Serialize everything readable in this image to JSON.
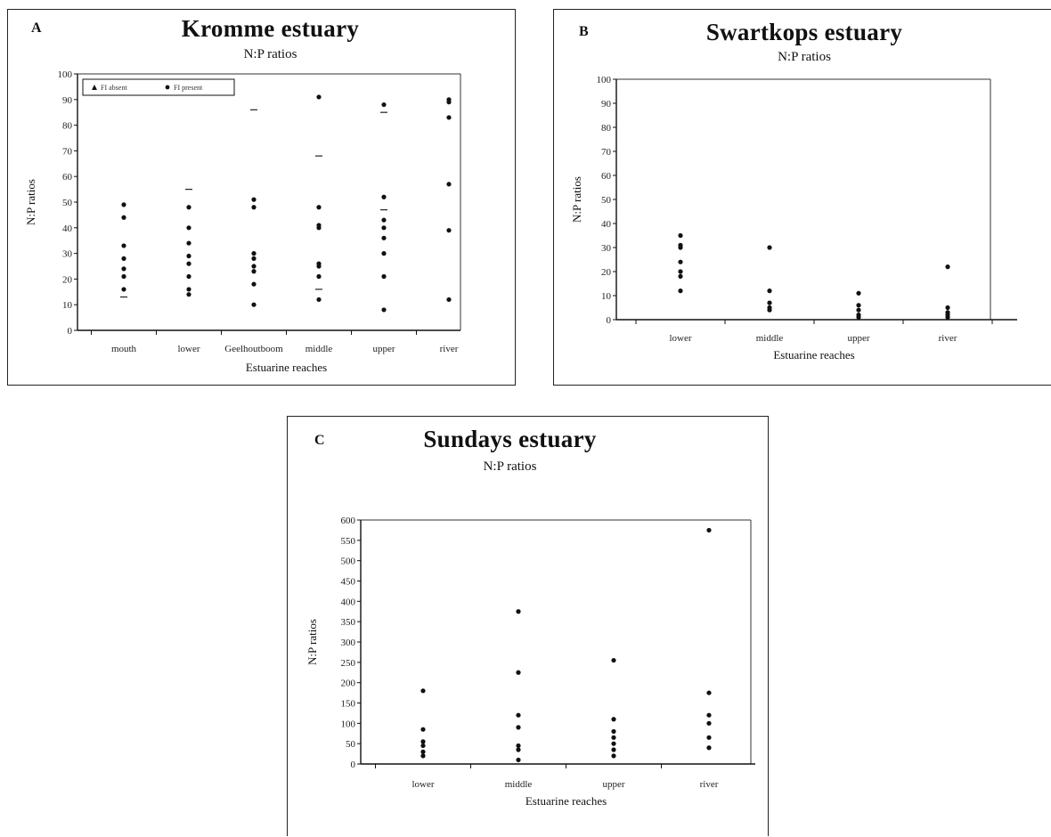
{
  "chart_data": [
    {
      "panel": "A",
      "type": "scatter",
      "title": "Kromme estuary",
      "subtitle": "N:P ratios",
      "xlabel": "Estuarine reaches",
      "ylabel": "N:P ratios",
      "categories": [
        "mouth",
        "lower",
        "Geelhoutboom",
        "middle",
        "upper",
        "river"
      ],
      "y_ticks": [
        "100",
        "90",
        "80",
        "70",
        "60",
        "50",
        "40",
        "30",
        "20",
        "10",
        "0"
      ],
      "ylim": [
        0,
        100
      ],
      "legend": {
        "placement": "top-left",
        "entries": [
          "FI absent",
          "FI present"
        ]
      },
      "series": [
        {
          "name": "FI present",
          "marker": "dot",
          "points": [
            {
              "x": "mouth",
              "y": 49
            },
            {
              "x": "mouth",
              "y": 44
            },
            {
              "x": "mouth",
              "y": 33
            },
            {
              "x": "mouth",
              "y": 28
            },
            {
              "x": "mouth",
              "y": 24
            },
            {
              "x": "mouth",
              "y": 21
            },
            {
              "x": "mouth",
              "y": 16
            },
            {
              "x": "lower",
              "y": 48
            },
            {
              "x": "lower",
              "y": 40
            },
            {
              "x": "lower",
              "y": 34
            },
            {
              "x": "lower",
              "y": 29
            },
            {
              "x": "lower",
              "y": 26
            },
            {
              "x": "lower",
              "y": 21
            },
            {
              "x": "lower",
              "y": 16
            },
            {
              "x": "lower",
              "y": 14
            },
            {
              "x": "Geelhoutboom",
              "y": 51
            },
            {
              "x": "Geelhoutboom",
              "y": 48
            },
            {
              "x": "Geelhoutboom",
              "y": 30
            },
            {
              "x": "Geelhoutboom",
              "y": 28
            },
            {
              "x": "Geelhoutboom",
              "y": 25
            },
            {
              "x": "Geelhoutboom",
              "y": 23
            },
            {
              "x": "Geelhoutboom",
              "y": 18
            },
            {
              "x": "Geelhoutboom",
              "y": 10
            },
            {
              "x": "middle",
              "y": 91
            },
            {
              "x": "middle",
              "y": 48
            },
            {
              "x": "middle",
              "y": 41
            },
            {
              "x": "middle",
              "y": 40
            },
            {
              "x": "middle",
              "y": 26
            },
            {
              "x": "middle",
              "y": 25
            },
            {
              "x": "middle",
              "y": 21
            },
            {
              "x": "middle",
              "y": 12
            },
            {
              "x": "upper",
              "y": 88
            },
            {
              "x": "upper",
              "y": 52
            },
            {
              "x": "upper",
              "y": 43
            },
            {
              "x": "upper",
              "y": 40
            },
            {
              "x": "upper",
              "y": 36
            },
            {
              "x": "upper",
              "y": 30
            },
            {
              "x": "upper",
              "y": 21
            },
            {
              "x": "upper",
              "y": 8
            },
            {
              "x": "river",
              "y": 90
            },
            {
              "x": "river",
              "y": 89
            },
            {
              "x": "river",
              "y": 83
            },
            {
              "x": "river",
              "y": 57
            },
            {
              "x": "river",
              "y": 39
            },
            {
              "x": "river",
              "y": 12
            }
          ]
        },
        {
          "name": "FI absent",
          "marker": "dash",
          "points": [
            {
              "x": "mouth",
              "y": 13
            },
            {
              "x": "lower",
              "y": 55
            },
            {
              "x": "Geelhoutboom",
              "y": 86
            },
            {
              "x": "middle",
              "y": 68
            },
            {
              "x": "middle",
              "y": 16
            },
            {
              "x": "upper",
              "y": 85
            },
            {
              "x": "upper",
              "y": 47
            }
          ]
        }
      ]
    },
    {
      "panel": "B",
      "type": "scatter",
      "title": "Swartkops estuary",
      "subtitle": "N:P ratios",
      "xlabel": "Estuarine reaches",
      "ylabel": "N:P ratios",
      "categories": [
        "lower",
        "middle",
        "upper",
        "river"
      ],
      "y_ticks": [
        "100",
        "90",
        "80",
        "70",
        "60",
        "50",
        "40",
        "30",
        "20",
        "10",
        "0"
      ],
      "ylim": [
        0,
        100
      ],
      "series": [
        {
          "name": "",
          "marker": "dot",
          "points": [
            {
              "x": "lower",
              "y": 35
            },
            {
              "x": "lower",
              "y": 31
            },
            {
              "x": "lower",
              "y": 30
            },
            {
              "x": "lower",
              "y": 24
            },
            {
              "x": "lower",
              "y": 20
            },
            {
              "x": "lower",
              "y": 18
            },
            {
              "x": "lower",
              "y": 12
            },
            {
              "x": "middle",
              "y": 30
            },
            {
              "x": "middle",
              "y": 12
            },
            {
              "x": "middle",
              "y": 7
            },
            {
              "x": "middle",
              "y": 5
            },
            {
              "x": "middle",
              "y": 4
            },
            {
              "x": "upper",
              "y": 11
            },
            {
              "x": "upper",
              "y": 6
            },
            {
              "x": "upper",
              "y": 4
            },
            {
              "x": "upper",
              "y": 2
            },
            {
              "x": "upper",
              "y": 1
            },
            {
              "x": "river",
              "y": 22
            },
            {
              "x": "river",
              "y": 5
            },
            {
              "x": "river",
              "y": 3
            },
            {
              "x": "river",
              "y": 2
            },
            {
              "x": "river",
              "y": 1
            }
          ]
        }
      ]
    },
    {
      "panel": "C",
      "type": "scatter",
      "title": "Sundays estuary",
      "subtitle": "N:P ratios",
      "xlabel": "Estuarine reaches",
      "ylabel": "N:P ratios",
      "categories": [
        "lower",
        "middle",
        "upper",
        "river"
      ],
      "y_ticks": [
        "600",
        "550",
        "500",
        "450",
        "400",
        "350",
        "300",
        "250",
        "200",
        "150",
        "100",
        "50",
        "0"
      ],
      "ylim": [
        0,
        600
      ],
      "series": [
        {
          "name": "",
          "marker": "dot",
          "points": [
            {
              "x": "lower",
              "y": 180
            },
            {
              "x": "lower",
              "y": 85
            },
            {
              "x": "lower",
              "y": 55
            },
            {
              "x": "lower",
              "y": 45
            },
            {
              "x": "lower",
              "y": 30
            },
            {
              "x": "lower",
              "y": 20
            },
            {
              "x": "middle",
              "y": 375
            },
            {
              "x": "middle",
              "y": 225
            },
            {
              "x": "middle",
              "y": 120
            },
            {
              "x": "middle",
              "y": 90
            },
            {
              "x": "middle",
              "y": 45
            },
            {
              "x": "middle",
              "y": 35
            },
            {
              "x": "middle",
              "y": 10
            },
            {
              "x": "upper",
              "y": 255
            },
            {
              "x": "upper",
              "y": 110
            },
            {
              "x": "upper",
              "y": 80
            },
            {
              "x": "upper",
              "y": 65
            },
            {
              "x": "upper",
              "y": 50
            },
            {
              "x": "upper",
              "y": 35
            },
            {
              "x": "upper",
              "y": 20
            },
            {
              "x": "river",
              "y": 575
            },
            {
              "x": "river",
              "y": 175
            },
            {
              "x": "river",
              "y": 120
            },
            {
              "x": "river",
              "y": 100
            },
            {
              "x": "river",
              "y": 65
            },
            {
              "x": "river",
              "y": 40
            }
          ]
        }
      ]
    }
  ]
}
